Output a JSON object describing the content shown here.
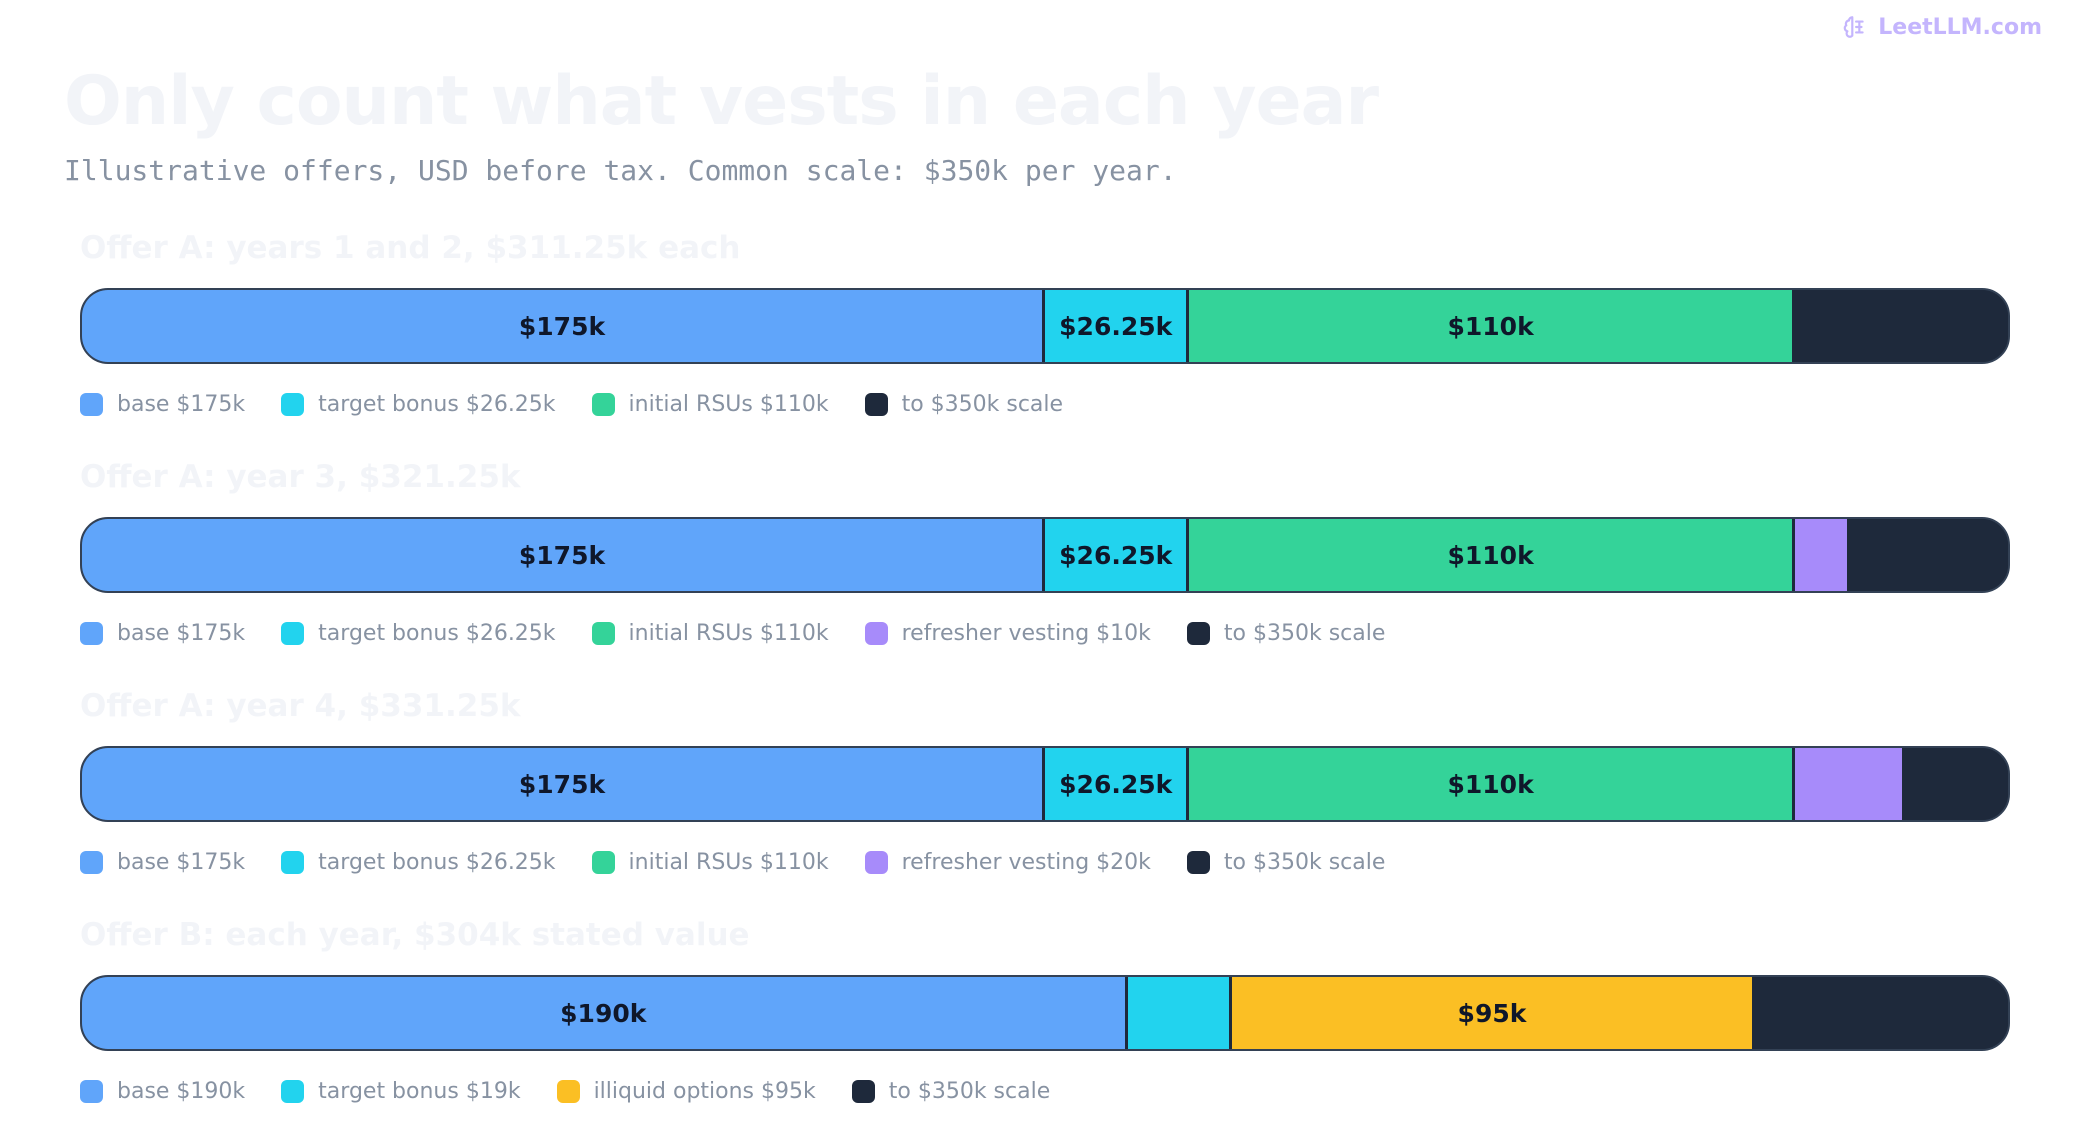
{
  "brand": {
    "label": "LeetLLM.com",
    "icon": "brain-icon",
    "color": "#c4b5fd"
  },
  "title": "Only count what vests in each year",
  "subtitle": "Illustrative offers, USD before tax. Common scale: $350k per year.",
  "chart_data": {
    "type": "bar",
    "orientation": "horizontal-stacked",
    "scale_max": 350,
    "unit": "k USD",
    "grid": false,
    "legend_placement": "below each bar",
    "panels": [
      {
        "title": "Offer A: years 1 and 2, $311.25k each",
        "series": [
          {
            "name": "base $175k",
            "value": 175,
            "label": "$175k",
            "color": "#60a5fa"
          },
          {
            "name": "target bonus $26.25k",
            "value": 26.25,
            "label": "$26.25k",
            "color": "#22d3ee"
          },
          {
            "name": "initial RSUs $110k",
            "value": 110,
            "label": "$110k",
            "color": "#34d399"
          },
          {
            "name": "to $350k scale",
            "value": 38.75,
            "label": "",
            "color": "#1e293b"
          }
        ]
      },
      {
        "title": "Offer A: year 3, $321.25k",
        "series": [
          {
            "name": "base $175k",
            "value": 175,
            "label": "$175k",
            "color": "#60a5fa"
          },
          {
            "name": "target bonus $26.25k",
            "value": 26.25,
            "label": "$26.25k",
            "color": "#22d3ee"
          },
          {
            "name": "initial RSUs $110k",
            "value": 110,
            "label": "$110k",
            "color": "#34d399"
          },
          {
            "name": "refresher vesting $10k",
            "value": 10,
            "label": "",
            "color": "#a78bfa"
          },
          {
            "name": "to $350k scale",
            "value": 28.75,
            "label": "",
            "color": "#1e293b"
          }
        ]
      },
      {
        "title": "Offer A: year 4, $331.25k",
        "series": [
          {
            "name": "base $175k",
            "value": 175,
            "label": "$175k",
            "color": "#60a5fa"
          },
          {
            "name": "target bonus $26.25k",
            "value": 26.25,
            "label": "$26.25k",
            "color": "#22d3ee"
          },
          {
            "name": "initial RSUs $110k",
            "value": 110,
            "label": "$110k",
            "color": "#34d399"
          },
          {
            "name": "refresher vesting $20k",
            "value": 20,
            "label": "",
            "color": "#a78bfa"
          },
          {
            "name": "to $350k scale",
            "value": 18.75,
            "label": "",
            "color": "#1e293b"
          }
        ]
      },
      {
        "title": "Offer B: each year, $304k stated value",
        "series": [
          {
            "name": "base $190k",
            "value": 190,
            "label": "$190k",
            "color": "#60a5fa"
          },
          {
            "name": "target bonus $19k",
            "value": 19,
            "label": "",
            "color": "#22d3ee"
          },
          {
            "name": "illiquid options $95k",
            "value": 95,
            "label": "$95k",
            "color": "#fbbf24"
          },
          {
            "name": "to $350k scale",
            "value": 46,
            "label": "",
            "color": "#1e293b"
          }
        ]
      }
    ]
  }
}
